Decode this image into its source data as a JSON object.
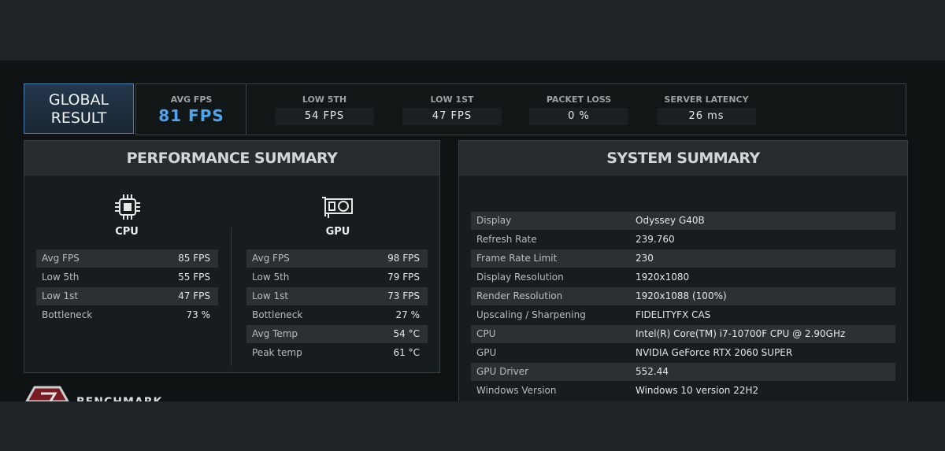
{
  "global_result": {
    "line1": "GLOBAL",
    "line2": "RESULT"
  },
  "stats": [
    {
      "label": "AVG FPS",
      "value": "81 FPS"
    },
    {
      "label": "LOW 5TH",
      "value": "54 FPS"
    },
    {
      "label": "LOW 1ST",
      "value": "47 FPS"
    },
    {
      "label": "PACKET LOSS",
      "value": "0 %"
    },
    {
      "label": "SERVER LATENCY",
      "value": "26 ms"
    }
  ],
  "performance_summary": {
    "title": "PERFORMANCE SUMMARY",
    "cpu": {
      "label": "CPU",
      "rows": [
        [
          "Avg FPS",
          "85 FPS"
        ],
        [
          "Low 5th",
          "55 FPS"
        ],
        [
          "Low 1st",
          "47 FPS"
        ],
        [
          "Bottleneck",
          "73 %"
        ]
      ]
    },
    "gpu": {
      "label": "GPU",
      "rows": [
        [
          "Avg FPS",
          "98 FPS"
        ],
        [
          "Low 5th",
          "79 FPS"
        ],
        [
          "Low 1st",
          "73 FPS"
        ],
        [
          "Bottleneck",
          "27 %"
        ],
        [
          "Avg Temp",
          "54 °C"
        ],
        [
          "Peak temp",
          "61 °C"
        ]
      ]
    }
  },
  "system_summary": {
    "title": "SYSTEM SUMMARY",
    "rows": [
      [
        "Display",
        "Odyssey G40B"
      ],
      [
        "Refresh Rate",
        "239.760"
      ],
      [
        "Frame Rate Limit",
        "230"
      ],
      [
        "Display Resolution",
        "1920x1080"
      ],
      [
        "Render Resolution",
        "1920x1088 (100%)"
      ],
      [
        "Upscaling / Sharpening",
        "FIDELITYFX CAS"
      ],
      [
        "CPU",
        "Intel(R) Core(TM) i7-10700F CPU @ 2.90GHz"
      ],
      [
        "GPU",
        "NVIDIA GeForce RTX 2060 SUPER"
      ],
      [
        "GPU Driver",
        "552.44"
      ],
      [
        "Windows Version",
        "Windows 10 version 22H2"
      ]
    ]
  },
  "footer": {
    "label": "BENCHMARK"
  }
}
